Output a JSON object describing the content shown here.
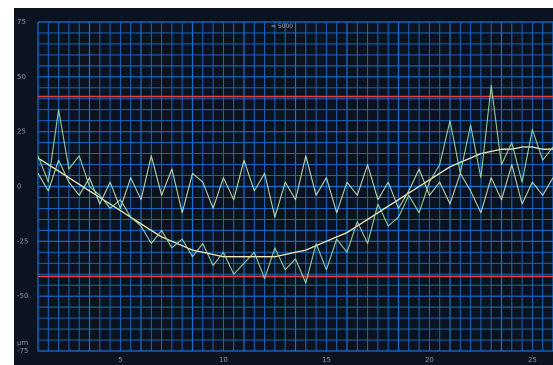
{
  "chart_data": {
    "type": "line",
    "title": "= 5000",
    "xlabel": "",
    "ylabel": "μm",
    "xlim": [
      1,
      26
    ],
    "ylim": [
      -75,
      75
    ],
    "x_ticks": [
      5,
      10,
      15,
      20,
      25
    ],
    "y_ticks": [
      75,
      50,
      25,
      0,
      -25,
      -50,
      -75
    ],
    "x_tick_labels": [
      "5",
      "10",
      "15",
      "20",
      "25"
    ],
    "y_tick_labels": [
      "75",
      "50",
      "25",
      "0",
      "-25",
      "-50",
      "-75"
    ],
    "grid": true,
    "reference_lines": [
      {
        "y": 41,
        "color": "#e04040"
      },
      {
        "y": -41,
        "color": "#e04040"
      }
    ],
    "series": [
      {
        "color": "#f2ebb8",
        "x": [
          1,
          1.5,
          2,
          2.5,
          3,
          3.5,
          4,
          4.5,
          5,
          5.5,
          6,
          6.5,
          7,
          7.5,
          8,
          8.5,
          9,
          9.5,
          10,
          10.5,
          11,
          11.5,
          12,
          12.5,
          13,
          13.5,
          14,
          14.5,
          15,
          15.5,
          16,
          16.5,
          17,
          17.5,
          18,
          18.5,
          19,
          19.5,
          20,
          20.5,
          21,
          21.5,
          22,
          22.5,
          23,
          23.5,
          24,
          24.5,
          25,
          25.5,
          26
        ],
        "y": [
          13,
          10,
          7,
          4,
          1,
          -2,
          -5,
          -8,
          -11,
          -14,
          -17,
          -20,
          -23,
          -25,
          -27,
          -29,
          -30,
          -31,
          -32,
          -32,
          -32,
          -32,
          -32,
          -32,
          -31,
          -30,
          -29,
          -27,
          -25,
          -23,
          -21,
          -18,
          -15,
          -12,
          -9,
          -6,
          -3,
          0,
          3,
          6,
          9,
          11,
          13,
          15,
          16,
          17,
          17,
          18,
          18,
          17,
          17
        ]
      },
      {
        "color": "#9ee0a8",
        "x": [
          1,
          1.5,
          2,
          2.5,
          3,
          3.5,
          4,
          4.5,
          5,
          5.5,
          6,
          6.5,
          7,
          7.5,
          8,
          8.5,
          9,
          9.5,
          10,
          10.5,
          11,
          11.5,
          12,
          12.5,
          13,
          13.5,
          14,
          14.5,
          15,
          15.5,
          16,
          16.5,
          17,
          17.5,
          18,
          18.5,
          19,
          19.5,
          20,
          20.5,
          21,
          21.5,
          22,
          22.5,
          23,
          23.5,
          24,
          24.5,
          25,
          25.5,
          26
        ],
        "y": [
          14,
          2,
          35,
          8,
          14,
          0,
          -4,
          -10,
          -6,
          -14,
          -18,
          -26,
          -20,
          -28,
          -24,
          -32,
          -26,
          -36,
          -30,
          -40,
          -35,
          -30,
          -42,
          -28,
          -38,
          -33,
          -44,
          -26,
          -38,
          -24,
          -30,
          -16,
          -26,
          -8,
          -18,
          -14,
          -4,
          -12,
          2,
          10,
          30,
          6,
          28,
          4,
          46,
          10,
          20,
          2,
          26,
          12,
          18
        ]
      },
      {
        "color": "#c9e6b0",
        "x": [
          1,
          1.5,
          2,
          2.5,
          3,
          3.5,
          4,
          4.5,
          5,
          5.5,
          6,
          6.5,
          7,
          7.5,
          8,
          8.5,
          9,
          9.5,
          10,
          10.5,
          11,
          11.5,
          12,
          12.5,
          13,
          13.5,
          14,
          14.5,
          15,
          15.5,
          16,
          16.5,
          17,
          17.5,
          18,
          18.5,
          19,
          19.5,
          20,
          20.5,
          21,
          21.5,
          22,
          22.5,
          23,
          23.5,
          24,
          24.5,
          25,
          25.5,
          26
        ],
        "y": [
          6,
          -2,
          12,
          2,
          -4,
          4,
          -8,
          2,
          -10,
          4,
          -6,
          14,
          -4,
          8,
          -12,
          6,
          2,
          -10,
          4,
          -6,
          12,
          -2,
          6,
          -14,
          2,
          -6,
          14,
          -4,
          4,
          -12,
          2,
          -4,
          10,
          -6,
          2,
          -10,
          -2,
          8,
          -4,
          2,
          -8,
          6,
          -2,
          -12,
          4,
          -6,
          10,
          -8,
          2,
          -4,
          4
        ]
      }
    ]
  }
}
